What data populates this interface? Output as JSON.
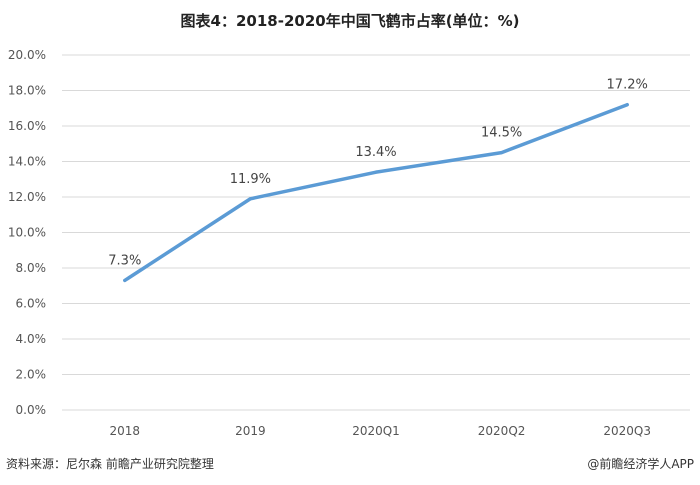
{
  "chart_data": {
    "type": "line",
    "title": "图表4：2018-2020年中国飞鹤市占率(单位：%)",
    "categories": [
      "2018",
      "2019",
      "2020Q1",
      "2020Q2",
      "2020Q3"
    ],
    "series": [
      {
        "values": [
          7.3,
          11.9,
          13.4,
          14.5,
          17.2
        ],
        "labels": [
          "7.3%",
          "11.9%",
          "13.4%",
          "14.5%",
          "17.2%"
        ]
      }
    ],
    "ylim": [
      0,
      20
    ],
    "yticks": [
      "0.0%",
      "2.0%",
      "4.0%",
      "6.0%",
      "8.0%",
      "10.0%",
      "12.0%",
      "14.0%",
      "16.0%",
      "18.0%",
      "20.0%"
    ],
    "grid": true,
    "line_color": "#5b9bd5",
    "grid_color": "#d9d9d9"
  },
  "footer": {
    "source": "资料来源：尼尔森 前瞻产业研究院整理",
    "credit": "@前瞻经济学人APP"
  }
}
